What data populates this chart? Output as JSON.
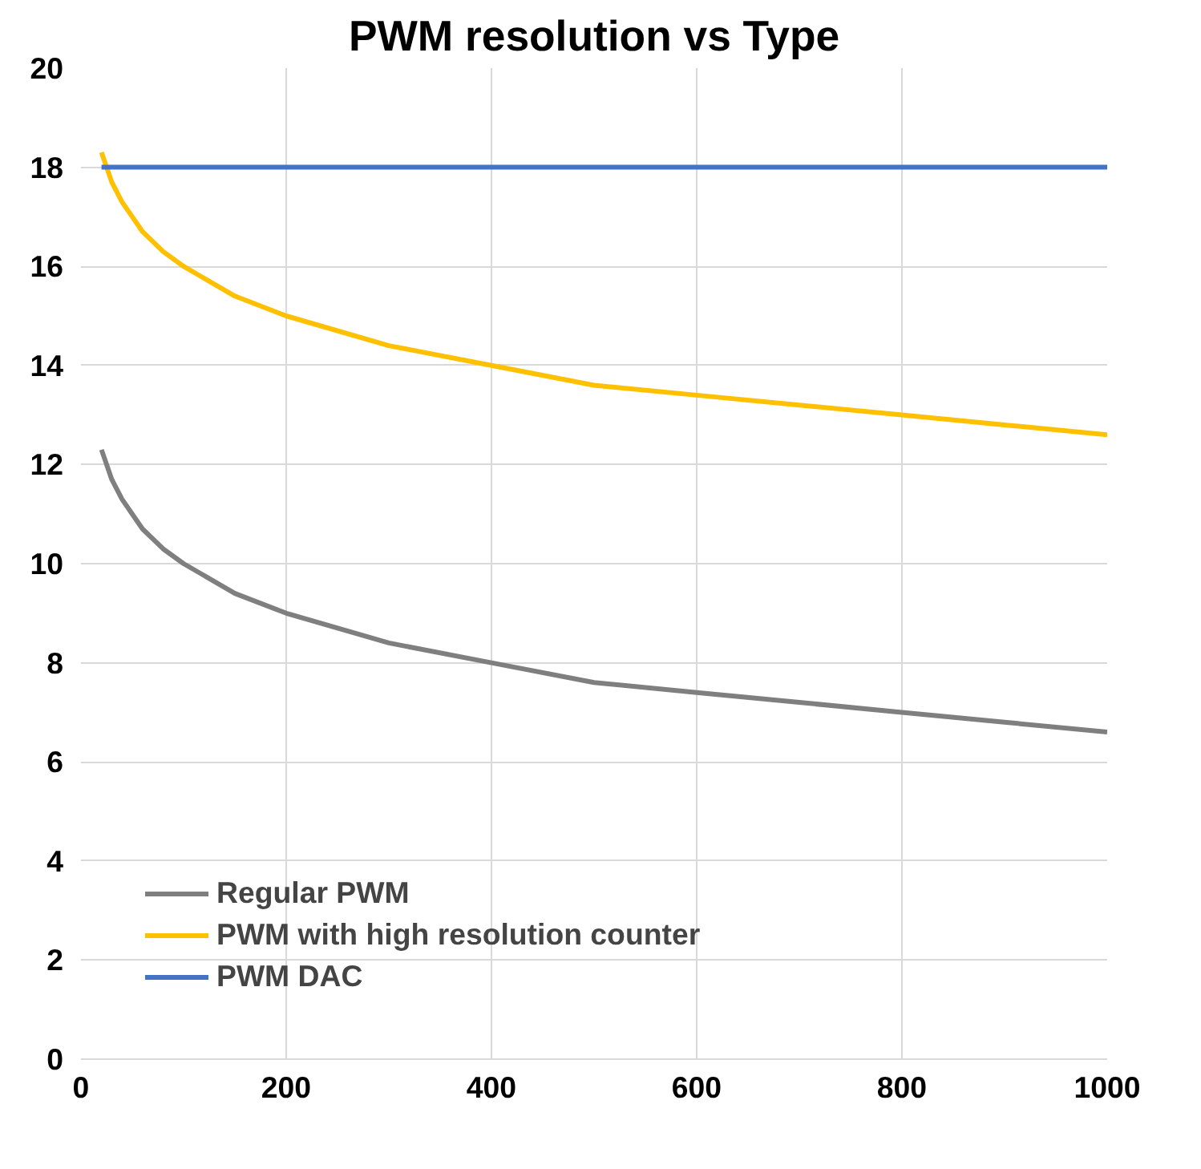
{
  "chart_data": {
    "type": "line",
    "title": "PWM resolution vs Type",
    "x": [
      20,
      30,
      40,
      50,
      60,
      80,
      100,
      150,
      200,
      300,
      400,
      500,
      600,
      700,
      800,
      900,
      1000
    ],
    "series": [
      {
        "name": "Regular PWM",
        "color": "#7f7f7f",
        "values": [
          12.3,
          11.7,
          11.3,
          11.0,
          10.7,
          10.3,
          10.0,
          9.4,
          9.0,
          8.4,
          8.0,
          7.6,
          7.4,
          7.2,
          7.0,
          6.8,
          6.6
        ]
      },
      {
        "name": "PWM with high resolution counter",
        "color": "#ffc000",
        "values": [
          18.3,
          17.7,
          17.3,
          17.0,
          16.7,
          16.3,
          16.0,
          15.4,
          15.0,
          14.4,
          14.0,
          13.6,
          13.4,
          13.2,
          13.0,
          12.8,
          12.6
        ]
      },
      {
        "name": "PWM DAC",
        "color": "#4472c4",
        "values": [
          18,
          18,
          18,
          18,
          18,
          18,
          18,
          18,
          18,
          18,
          18,
          18,
          18,
          18,
          18,
          18,
          18
        ]
      }
    ],
    "xlim": [
      0,
      1000
    ],
    "xticks": [
      0,
      200,
      400,
      600,
      800,
      1000
    ],
    "ylim": [
      0,
      20
    ],
    "yticks": [
      0,
      2,
      4,
      6,
      8,
      10,
      12,
      14,
      16,
      18,
      20
    ],
    "grid": true,
    "legend": "bottom left",
    "marker": "none",
    "line_style": "solid"
  }
}
